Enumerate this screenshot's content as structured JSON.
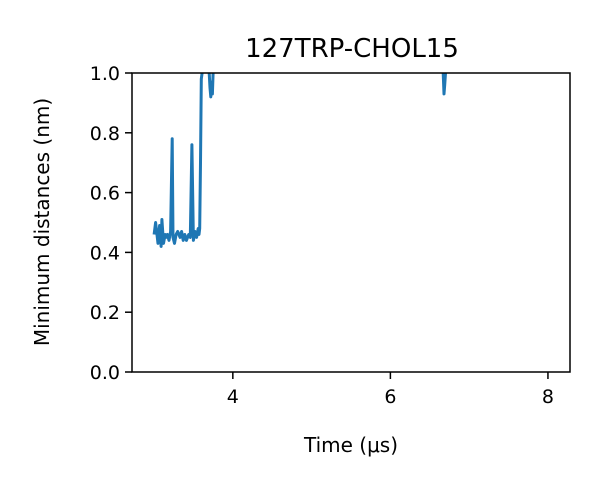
{
  "chart_data": {
    "type": "line",
    "title": "127TRP-CHOL15",
    "xlabel": "Time (μs)",
    "ylabel": "Minimum distances (nm)",
    "xlim": [
      2.72,
      8.28
    ],
    "ylim": [
      0.0,
      1.0
    ],
    "xticks": [
      4,
      6,
      8
    ],
    "yticks": [
      0.0,
      0.2,
      0.4,
      0.6,
      0.8,
      1.0
    ],
    "xtick_labels": [
      "4",
      "6",
      "8"
    ],
    "ytick_labels": [
      "0.0",
      "0.2",
      "0.4",
      "0.6",
      "0.8",
      "1.0"
    ],
    "grid": false,
    "series": [
      {
        "color": "#1f77b4",
        "x": [
          3.0,
          3.02,
          3.05,
          3.07,
          3.09,
          3.1,
          3.12,
          3.14,
          3.15,
          3.17,
          3.19,
          3.21,
          3.23,
          3.24,
          3.26,
          3.28,
          3.3,
          3.33,
          3.35,
          3.37,
          3.39,
          3.41,
          3.44,
          3.46,
          3.48,
          3.5,
          3.52,
          3.54,
          3.56,
          3.57,
          3.58,
          3.59,
          3.6,
          3.61
        ],
        "y": [
          0.46,
          0.5,
          0.43,
          0.49,
          0.42,
          0.51,
          0.43,
          0.46,
          0.45,
          0.46,
          0.44,
          0.47,
          0.78,
          0.45,
          0.43,
          0.46,
          0.47,
          0.45,
          0.47,
          0.44,
          0.46,
          0.44,
          0.46,
          0.45,
          0.76,
          0.44,
          0.47,
          0.45,
          0.48,
          0.46,
          0.48,
          0.7,
          0.98,
          1.0
        ]
      },
      {
        "color": "#1f77b4",
        "x": [
          3.7,
          3.71,
          3.72,
          3.73,
          3.74,
          3.75
        ],
        "y": [
          1.0,
          0.95,
          0.92,
          0.97,
          0.93,
          1.0
        ]
      },
      {
        "color": "#1f77b4",
        "x": [
          6.67,
          6.68,
          6.69,
          6.7
        ],
        "y": [
          1.0,
          0.93,
          0.96,
          1.0
        ]
      }
    ]
  }
}
